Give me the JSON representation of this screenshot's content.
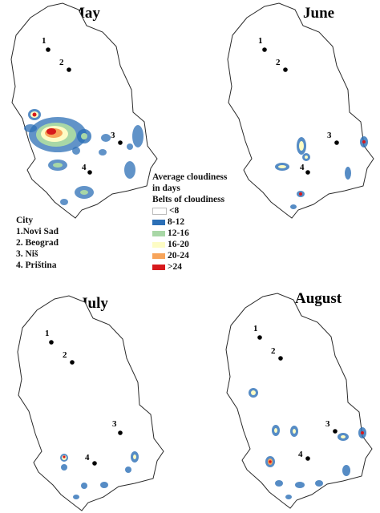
{
  "months": [
    {
      "key": "may",
      "title": "May"
    },
    {
      "key": "june",
      "title": "June"
    },
    {
      "key": "july",
      "title": "July"
    },
    {
      "key": "august",
      "title": "August"
    }
  ],
  "city_legend": {
    "heading": "City",
    "items": [
      "1.Novi Sad",
      "2. Beograd",
      "3. Niš",
      "4. Priština"
    ]
  },
  "city_numbers": [
    "1",
    "2",
    "3",
    "4"
  ],
  "cloudiness_legend": {
    "title_line1": "Average cloudiness",
    "title_line2": "in days",
    "subtitle": "Belts of cloudiness",
    "classes": [
      {
        "label": "<8",
        "color": "#ffffff"
      },
      {
        "label": "8-12",
        "color": "#2c6fb6"
      },
      {
        "label": "12-16",
        "color": "#a8d7a6"
      },
      {
        "label": "16-20",
        "color": "#fdfcc4"
      },
      {
        "label": "20-24",
        "color": "#f7a45a"
      },
      {
        "label": ">24",
        "color": "#d7191c"
      }
    ]
  }
}
